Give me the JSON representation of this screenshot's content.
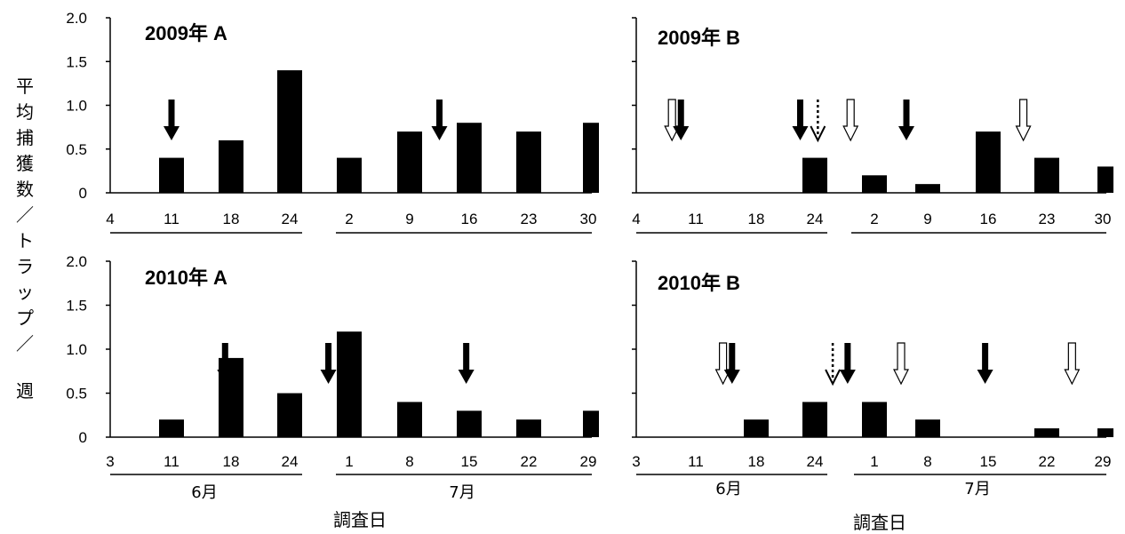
{
  "figure": {
    "ylabel_chars": [
      "平",
      "均",
      "捕",
      "獲",
      "数",
      "／",
      "ト",
      "ラ",
      "ッ",
      "プ",
      "／",
      "週"
    ],
    "xlabel": "調査日",
    "month_june": "6月",
    "month_july": "7月"
  },
  "chart_data": [
    {
      "type": "bar",
      "title": "2009年 A",
      "ylim": [
        0,
        2.0
      ],
      "yticks": [
        "2.0",
        "1.5",
        "1.0",
        "0.5",
        "0"
      ],
      "xticks": [
        "4",
        "11",
        "18",
        "24",
        "2",
        "9",
        "16",
        "23",
        "30"
      ],
      "categories": [
        "6/11",
        "6/18",
        "6/24",
        "7/2",
        "7/9",
        "7/16",
        "7/23",
        "7/30"
      ],
      "values": [
        0.4,
        0.6,
        1.4,
        0.4,
        0.7,
        0.8,
        0.7,
        0.8
      ],
      "arrows": [
        {
          "type": "solid",
          "date_index": 1.0
        },
        {
          "type": "solid",
          "date_index": 3.0
        },
        {
          "type": "solid",
          "date_index": 5.5
        }
      ]
    },
    {
      "type": "bar",
      "title": "2009年 B",
      "ylim": [
        0,
        2.0
      ],
      "yticks": [
        "2.0",
        "1.5",
        "1.0",
        "0.5",
        "0"
      ],
      "xticks": [
        "4",
        "11",
        "18",
        "24",
        "2",
        "9",
        "16",
        "23",
        "30"
      ],
      "categories": [
        "6/11",
        "6/18",
        "6/24",
        "7/2",
        "7/9",
        "7/16",
        "7/23",
        "7/30"
      ],
      "values": [
        0,
        0,
        0.4,
        0.2,
        0.1,
        0.7,
        0.4,
        0.3
      ],
      "arrows": [
        {
          "type": "open",
          "date_index": 0.6
        },
        {
          "type": "solid",
          "date_index": 0.75
        },
        {
          "type": "solid",
          "date_index": 2.75
        },
        {
          "type": "dotted",
          "date_index": 3.05
        },
        {
          "type": "open",
          "date_index": 3.6
        },
        {
          "type": "solid",
          "date_index": 4.6
        },
        {
          "type": "open",
          "date_index": 6.6
        }
      ]
    },
    {
      "type": "bar",
      "title": "2010年 A",
      "ylim": [
        0,
        2.0
      ],
      "yticks": [
        "2.0",
        "1.5",
        "1.0",
        "0.5",
        "0"
      ],
      "xticks": [
        "3",
        "11",
        "18",
        "24",
        "1",
        "8",
        "15",
        "22",
        "29"
      ],
      "categories": [
        "6/11",
        "6/18",
        "6/24",
        "7/1",
        "7/8",
        "7/15",
        "7/22",
        "7/29"
      ],
      "values": [
        0.2,
        0.9,
        0.5,
        1.2,
        0.4,
        0.3,
        0.2,
        0.3
      ],
      "arrows": [
        {
          "type": "solid",
          "date_index": 1.9
        },
        {
          "type": "solid",
          "date_index": 3.65
        },
        {
          "type": "solid",
          "date_index": 5.95
        }
      ]
    },
    {
      "type": "bar",
      "title": "2010年 B",
      "ylim": [
        0,
        2.0
      ],
      "yticks": [
        "2.0",
        "1.5",
        "1.0",
        "0.5",
        "0"
      ],
      "xticks": [
        "3",
        "11",
        "18",
        "24",
        "1",
        "8",
        "15",
        "22",
        "29"
      ],
      "categories": [
        "6/11",
        "6/18",
        "6/24",
        "7/1",
        "7/8",
        "7/15",
        "7/22",
        "7/29"
      ],
      "values": [
        0,
        0.2,
        0.4,
        0.4,
        0.2,
        0,
        0.1,
        0.1
      ],
      "arrows": [
        {
          "type": "open",
          "date_index": 1.45
        },
        {
          "type": "solid",
          "date_index": 1.6
        },
        {
          "type": "dotted",
          "date_index": 3.3
        },
        {
          "type": "solid",
          "date_index": 3.55
        },
        {
          "type": "open",
          "date_index": 4.5
        },
        {
          "type": "solid",
          "date_index": 5.95
        },
        {
          "type": "open",
          "date_index": 7.45
        }
      ]
    }
  ]
}
